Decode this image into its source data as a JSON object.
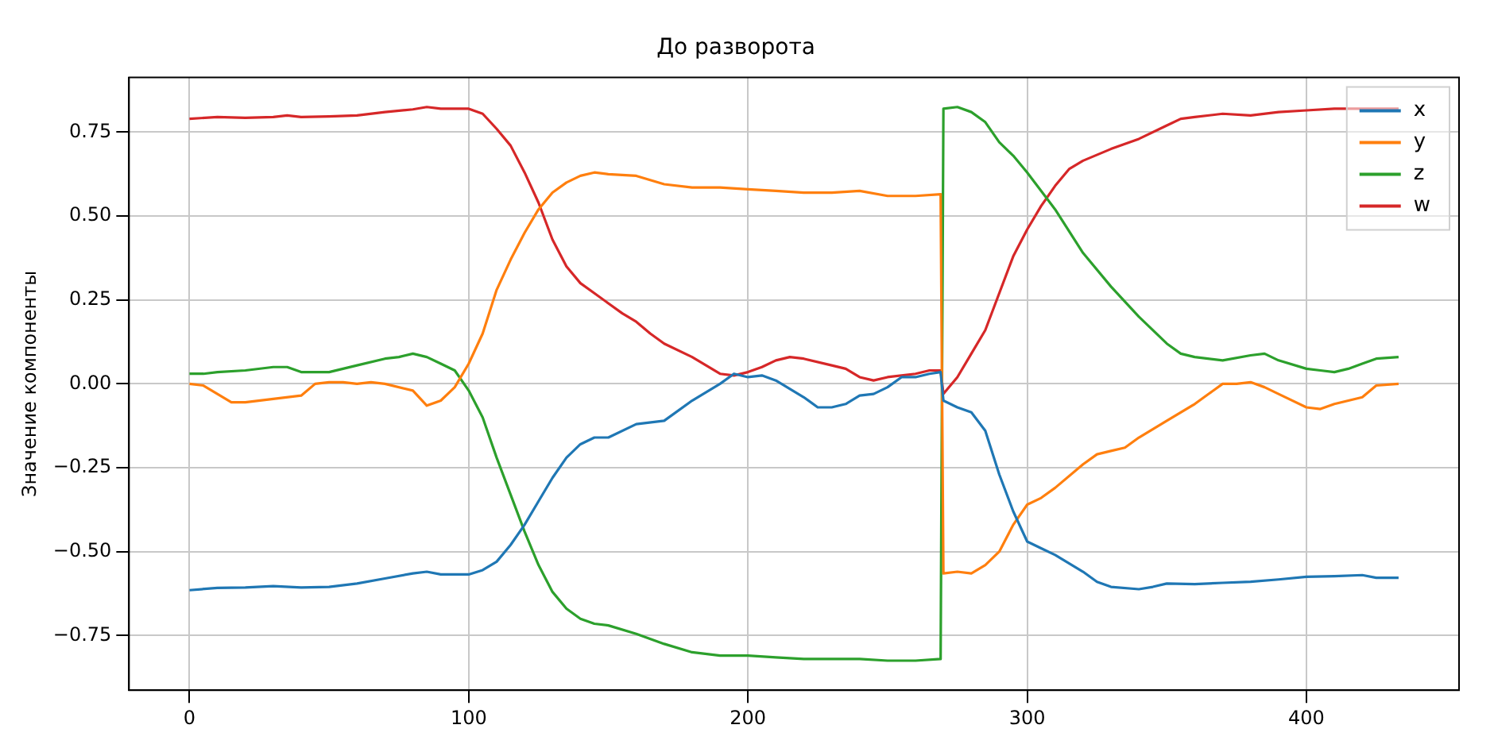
{
  "chart_data": {
    "type": "line",
    "title": "До разворота",
    "ylabel": "Значение компоненты",
    "xlim": [
      -21.65,
      454.65
    ],
    "ylim": [
      -0.913,
      0.913
    ],
    "xticks": [
      0,
      100,
      200,
      300,
      400
    ],
    "yticks": [
      {
        "value": -0.75,
        "label": "−0.75"
      },
      {
        "value": -0.5,
        "label": "−0.50"
      },
      {
        "value": -0.25,
        "label": "−0.25"
      },
      {
        "value": 0,
        "label": "0.00"
      },
      {
        "value": 0.25,
        "label": "0.25"
      },
      {
        "value": 0.5,
        "label": "0.50"
      },
      {
        "value": 0.75,
        "label": "0.75"
      }
    ],
    "grid": true,
    "legend": "top right",
    "series": [
      {
        "name": "x",
        "color": "#1f77b4",
        "x": [
          0,
          10,
          20,
          30,
          40,
          50,
          60,
          70,
          80,
          85,
          90,
          100,
          105,
          110,
          115,
          120,
          125,
          130,
          135,
          140,
          145,
          150,
          160,
          170,
          180,
          190,
          195,
          200,
          205,
          210,
          220,
          225,
          230,
          235,
          240,
          245,
          250,
          255,
          260,
          265,
          269,
          270,
          275,
          280,
          285,
          290,
          295,
          300,
          305,
          310,
          320,
          325,
          330,
          340,
          345,
          350,
          360,
          370,
          380,
          390,
          400,
          410,
          420,
          425,
          433
        ],
        "values": [
          -0.615,
          -0.608,
          -0.607,
          -0.603,
          -0.607,
          -0.605,
          -0.595,
          -0.58,
          -0.565,
          -0.56,
          -0.568,
          -0.568,
          -0.555,
          -0.53,
          -0.48,
          -0.42,
          -0.35,
          -0.28,
          -0.22,
          -0.18,
          -0.16,
          -0.16,
          -0.12,
          -0.11,
          -0.05,
          0.0,
          0.03,
          0.02,
          0.025,
          0.01,
          -0.04,
          -0.07,
          -0.07,
          -0.06,
          -0.035,
          -0.03,
          -0.01,
          0.02,
          0.02,
          0.03,
          0.035,
          -0.05,
          -0.07,
          -0.085,
          -0.14,
          -0.27,
          -0.38,
          -0.47,
          -0.49,
          -0.51,
          -0.56,
          -0.59,
          -0.605,
          -0.612,
          -0.605,
          -0.595,
          -0.597,
          -0.593,
          -0.59,
          -0.583,
          -0.575,
          -0.573,
          -0.57,
          -0.578,
          -0.578
        ]
      },
      {
        "name": "y",
        "color": "#ff7f0e",
        "x": [
          0,
          5,
          10,
          15,
          20,
          30,
          40,
          45,
          50,
          55,
          60,
          65,
          70,
          80,
          85,
          90,
          95,
          100,
          105,
          110,
          115,
          120,
          125,
          130,
          135,
          140,
          145,
          150,
          160,
          170,
          180,
          190,
          200,
          210,
          220,
          230,
          240,
          250,
          260,
          269,
          270,
          275,
          280,
          285,
          290,
          295,
          300,
          305,
          310,
          320,
          325,
          330,
          335,
          340,
          350,
          360,
          365,
          370,
          375,
          380,
          385,
          390,
          400,
          405,
          410,
          420,
          425,
          433
        ],
        "values": [
          0,
          -0.005,
          -0.03,
          -0.055,
          -0.055,
          -0.045,
          -0.035,
          0,
          0.005,
          0.005,
          0,
          0.005,
          0,
          -0.02,
          -0.065,
          -0.05,
          -0.01,
          0.06,
          0.15,
          0.28,
          0.37,
          0.45,
          0.52,
          0.57,
          0.6,
          0.62,
          0.63,
          0.625,
          0.62,
          0.595,
          0.585,
          0.585,
          0.58,
          0.575,
          0.57,
          0.57,
          0.575,
          0.56,
          0.56,
          0.565,
          -0.565,
          -0.56,
          -0.565,
          -0.54,
          -0.5,
          -0.42,
          -0.36,
          -0.34,
          -0.31,
          -0.24,
          -0.21,
          -0.2,
          -0.19,
          -0.16,
          -0.11,
          -0.06,
          -0.03,
          0,
          0,
          0.005,
          -0.01,
          -0.03,
          -0.07,
          -0.075,
          -0.06,
          -0.04,
          -0.005,
          0
        ]
      },
      {
        "name": "z",
        "color": "#2ca02c",
        "x": [
          0,
          5,
          10,
          20,
          30,
          35,
          40,
          50,
          60,
          70,
          75,
          80,
          85,
          90,
          95,
          100,
          105,
          110,
          115,
          120,
          125,
          130,
          135,
          140,
          145,
          150,
          160,
          170,
          180,
          190,
          200,
          210,
          220,
          230,
          240,
          250,
          260,
          269,
          270,
          275,
          280,
          285,
          290,
          295,
          300,
          310,
          320,
          330,
          340,
          350,
          355,
          360,
          370,
          380,
          385,
          390,
          400,
          405,
          410,
          415,
          420,
          425,
          433
        ],
        "values": [
          0.03,
          0.03,
          0.035,
          0.04,
          0.05,
          0.05,
          0.035,
          0.035,
          0.055,
          0.075,
          0.08,
          0.09,
          0.08,
          0.06,
          0.04,
          -0.02,
          -0.1,
          -0.22,
          -0.33,
          -0.44,
          -0.54,
          -0.62,
          -0.67,
          -0.7,
          -0.715,
          -0.72,
          -0.745,
          -0.775,
          -0.8,
          -0.81,
          -0.81,
          -0.815,
          -0.82,
          -0.82,
          -0.82,
          -0.825,
          -0.825,
          -0.82,
          0.82,
          0.825,
          0.81,
          0.78,
          0.72,
          0.68,
          0.63,
          0.52,
          0.39,
          0.29,
          0.2,
          0.12,
          0.09,
          0.08,
          0.07,
          0.085,
          0.09,
          0.07,
          0.045,
          0.04,
          0.035,
          0.045,
          0.06,
          0.075,
          0.08
        ]
      },
      {
        "name": "w",
        "color": "#d62728",
        "x": [
          0,
          10,
          20,
          30,
          35,
          40,
          50,
          60,
          70,
          80,
          85,
          90,
          100,
          105,
          110,
          115,
          120,
          125,
          130,
          135,
          140,
          145,
          150,
          155,
          160,
          165,
          170,
          180,
          185,
          190,
          195,
          200,
          205,
          210,
          215,
          220,
          230,
          235,
          240,
          245,
          250,
          260,
          265,
          269,
          270,
          275,
          280,
          285,
          290,
          295,
          300,
          305,
          310,
          315,
          320,
          330,
          340,
          350,
          355,
          360,
          370,
          380,
          390,
          400,
          410,
          420,
          425,
          433
        ],
        "values": [
          0.79,
          0.795,
          0.793,
          0.795,
          0.8,
          0.795,
          0.797,
          0.8,
          0.81,
          0.818,
          0.825,
          0.82,
          0.82,
          0.805,
          0.76,
          0.71,
          0.63,
          0.54,
          0.43,
          0.35,
          0.3,
          0.27,
          0.24,
          0.21,
          0.185,
          0.15,
          0.12,
          0.08,
          0.055,
          0.03,
          0.025,
          0.035,
          0.05,
          0.07,
          0.08,
          0.075,
          0.055,
          0.045,
          0.02,
          0.01,
          0.02,
          0.03,
          0.04,
          0.04,
          -0.03,
          0.02,
          0.09,
          0.16,
          0.27,
          0.38,
          0.46,
          0.53,
          0.59,
          0.64,
          0.665,
          0.7,
          0.73,
          0.77,
          0.79,
          0.795,
          0.805,
          0.8,
          0.81,
          0.815,
          0.82,
          0.82,
          0.82,
          0.82
        ]
      }
    ]
  }
}
